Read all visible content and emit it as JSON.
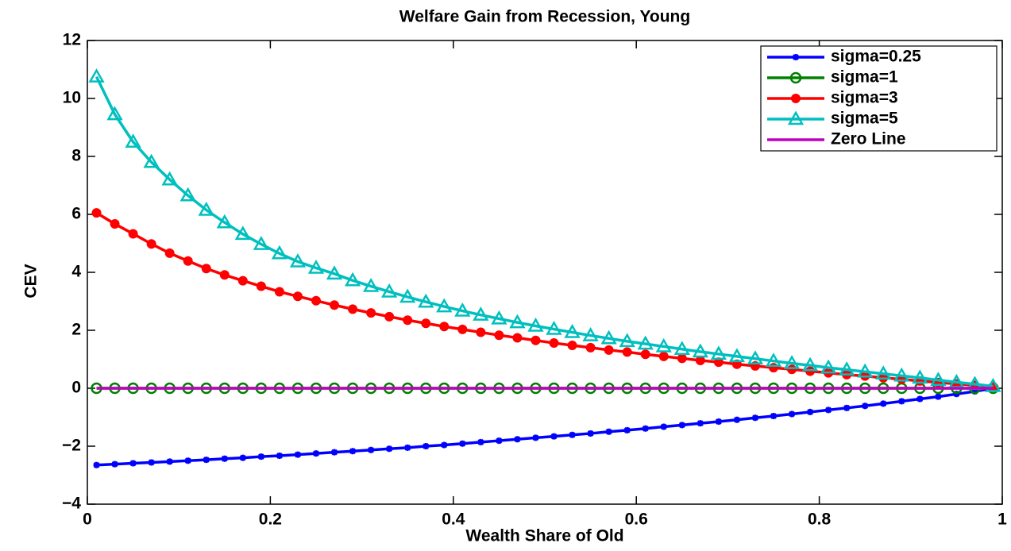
{
  "chart_data": {
    "type": "line",
    "title": "Welfare Gain from Recession, Young",
    "x_label": "Wealth Share of Old",
    "y_label": "CEV",
    "x": [
      0.01,
      0.03,
      0.05,
      0.07,
      0.09,
      0.11,
      0.13,
      0.15,
      0.17,
      0.19,
      0.21,
      0.23,
      0.25,
      0.27,
      0.29,
      0.31,
      0.33,
      0.35,
      0.37,
      0.39,
      0.41,
      0.43,
      0.45,
      0.47,
      0.49,
      0.51,
      0.53,
      0.55,
      0.57,
      0.59,
      0.61,
      0.63,
      0.65,
      0.67,
      0.69,
      0.71,
      0.73,
      0.75,
      0.77,
      0.79,
      0.81,
      0.83,
      0.85,
      0.87,
      0.89,
      0.91,
      0.93,
      0.95,
      0.97,
      0.99
    ],
    "series": [
      {
        "name": "sigma=0.25",
        "color": "#0000ff",
        "marker": "star",
        "values": [
          -2.65,
          -2.62,
          -2.59,
          -2.56,
          -2.53,
          -2.5,
          -2.47,
          -2.43,
          -2.4,
          -2.36,
          -2.33,
          -2.29,
          -2.25,
          -2.21,
          -2.17,
          -2.13,
          -2.09,
          -2.05,
          -2.0,
          -1.96,
          -1.91,
          -1.86,
          -1.81,
          -1.76,
          -1.71,
          -1.66,
          -1.61,
          -1.56,
          -1.5,
          -1.45,
          -1.39,
          -1.33,
          -1.27,
          -1.21,
          -1.15,
          -1.09,
          -1.02,
          -0.96,
          -0.89,
          -0.82,
          -0.75,
          -0.68,
          -0.61,
          -0.53,
          -0.45,
          -0.37,
          -0.29,
          -0.2,
          -0.11,
          0
        ]
      },
      {
        "name": "sigma=1",
        "color": "#008000",
        "marker": "circle-open",
        "values": [
          0,
          0,
          0,
          0,
          0,
          0,
          0,
          0,
          0,
          0,
          0,
          0,
          0,
          0,
          0,
          0,
          0,
          0,
          0,
          0,
          0,
          0,
          0,
          0,
          0,
          0,
          0,
          0,
          0,
          0,
          0,
          0,
          0,
          0,
          0,
          0,
          0,
          0,
          0,
          0,
          0,
          0,
          0,
          0,
          0,
          0,
          0,
          0,
          0,
          0
        ]
      },
      {
        "name": "sigma=3",
        "color": "#ff0000",
        "marker": "circle-filled",
        "values": [
          6.05,
          5.67,
          5.33,
          4.98,
          4.66,
          4.39,
          4.13,
          3.91,
          3.71,
          3.52,
          3.33,
          3.17,
          3.02,
          2.87,
          2.73,
          2.6,
          2.47,
          2.35,
          2.24,
          2.13,
          2.03,
          1.93,
          1.83,
          1.74,
          1.65,
          1.56,
          1.48,
          1.4,
          1.32,
          1.25,
          1.17,
          1.1,
          1.03,
          0.96,
          0.9,
          0.83,
          0.77,
          0.71,
          0.65,
          0.59,
          0.53,
          0.47,
          0.42,
          0.36,
          0.31,
          0.25,
          0.2,
          0.15,
          0.1,
          0.05
        ]
      },
      {
        "name": "sigma=5",
        "color": "#00bfbf",
        "marker": "triangle-open",
        "values": [
          10.75,
          9.45,
          8.5,
          7.8,
          7.2,
          6.65,
          6.15,
          5.72,
          5.32,
          4.97,
          4.65,
          4.37,
          4.15,
          3.95,
          3.72,
          3.52,
          3.33,
          3.15,
          2.98,
          2.82,
          2.67,
          2.53,
          2.4,
          2.27,
          2.15,
          2.04,
          1.93,
          1.82,
          1.72,
          1.62,
          1.53,
          1.44,
          1.35,
          1.26,
          1.18,
          1.1,
          1.02,
          0.94,
          0.86,
          0.79,
          0.71,
          0.64,
          0.57,
          0.5,
          0.43,
          0.36,
          0.28,
          0.21,
          0.14,
          0.07
        ]
      },
      {
        "name": "Zero Line",
        "color": "#bf00bf",
        "marker": "none",
        "values": [
          0,
          0,
          0,
          0,
          0,
          0,
          0,
          0,
          0,
          0,
          0,
          0,
          0,
          0,
          0,
          0,
          0,
          0,
          0,
          0,
          0,
          0,
          0,
          0,
          0,
          0,
          0,
          0,
          0,
          0,
          0,
          0,
          0,
          0,
          0,
          0,
          0,
          0,
          0,
          0,
          0,
          0,
          0,
          0,
          0,
          0,
          0,
          0,
          0,
          0
        ]
      }
    ],
    "xlim": [
      0,
      1
    ],
    "xticks": [
      0,
      0.2,
      0.4,
      0.6,
      0.8,
      1
    ],
    "ylim": [
      -4,
      12
    ],
    "yticks": [
      {
        "value": -4,
        "label": "−4"
      },
      {
        "value": -2,
        "label": "−2"
      },
      0,
      2,
      4,
      6,
      8,
      10,
      12
    ],
    "grid": false,
    "legend": "upper-right"
  }
}
